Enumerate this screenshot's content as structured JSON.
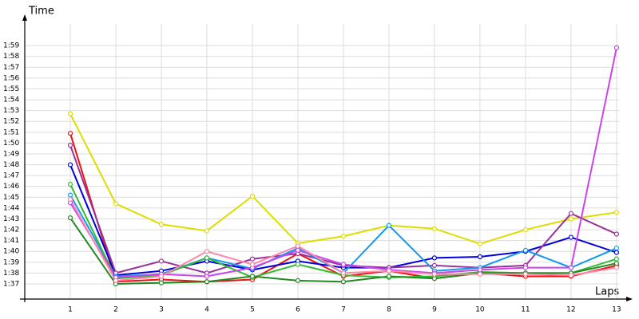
{
  "chart_data": {
    "type": "line",
    "y_label": "Time",
    "x_label": "Laps",
    "x": [
      1,
      2,
      3,
      4,
      5,
      6,
      7,
      8,
      9,
      10,
      11,
      12,
      13
    ],
    "xlim": [
      0,
      13.3
    ],
    "xticks": [
      1,
      2,
      3,
      4,
      5,
      6,
      7,
      8,
      9,
      10,
      11,
      12,
      13
    ],
    "ylim": [
      95.6,
      121
    ],
    "yticks": [
      {
        "value": 97,
        "label": "1:37"
      },
      {
        "value": 98,
        "label": "1:38"
      },
      {
        "value": 99,
        "label": "1:39"
      },
      {
        "value": 100,
        "label": "1:40"
      },
      {
        "value": 101,
        "label": "1:41"
      },
      {
        "value": 102,
        "label": "1:42"
      },
      {
        "value": 103,
        "label": "1:43"
      },
      {
        "value": 104,
        "label": "1:44"
      },
      {
        "value": 105,
        "label": "1:45"
      },
      {
        "value": 106,
        "label": "1:46"
      },
      {
        "value": 107,
        "label": "1:47"
      },
      {
        "value": 108,
        "label": "1:48"
      },
      {
        "value": 109,
        "label": "1:49"
      },
      {
        "value": 110,
        "label": "1:50"
      },
      {
        "value": 111,
        "label": "1:51"
      },
      {
        "value": 112,
        "label": "1:52"
      },
      {
        "value": 113,
        "label": "1:53"
      },
      {
        "value": 114,
        "label": "1:54"
      },
      {
        "value": 115,
        "label": "1:55"
      },
      {
        "value": 116,
        "label": "1:56"
      },
      {
        "value": 117,
        "label": "1:57"
      },
      {
        "value": 118,
        "label": "1:58"
      },
      {
        "value": 119,
        "label": "1:59"
      }
    ],
    "grid": true,
    "series": [
      {
        "color": "#dddd00",
        "values": [
          112.7,
          104.4,
          102.5,
          101.9,
          105.1,
          100.75,
          101.4,
          102.4,
          102.1,
          100.7,
          102,
          103,
          103.6
        ]
      },
      {
        "color": "#ee1111",
        "values": [
          110.9,
          97.2,
          97.4,
          97.2,
          97.4,
          99.8,
          97.7,
          98.2,
          97.5,
          98,
          97.7,
          97.7,
          98.7
        ]
      },
      {
        "color": "#0000dd",
        "values": [
          108,
          97.8,
          98.2,
          99.1,
          98.3,
          99.1,
          98.5,
          98.5,
          99.4,
          99.5,
          100,
          101.3,
          99.9
        ]
      },
      {
        "color": "#993399",
        "values": [
          109.8,
          98,
          99.1,
          98,
          99.3,
          99.8,
          98.7,
          98.5,
          98.7,
          98.5,
          98.7,
          103.5,
          101.6
        ]
      },
      {
        "color": "#1199ee",
        "values": [
          105.2,
          97.7,
          97.9,
          99.4,
          98.4,
          100.3,
          98,
          102.4,
          98.2,
          98.5,
          100.1,
          98.5,
          100.3
        ]
      },
      {
        "color": "#33bb33",
        "values": [
          106.2,
          97.5,
          97.8,
          99.4,
          97.6,
          98.8,
          97.8,
          97.6,
          97.7,
          98.1,
          98,
          98,
          99.3
        ]
      },
      {
        "color": "#228822",
        "values": [
          103.1,
          97,
          97.1,
          97.2,
          97.7,
          97.3,
          97.2,
          97.7,
          97.5,
          98,
          98,
          98,
          98.9
        ]
      },
      {
        "color": "#cc44ee",
        "values": [
          104.5,
          97.6,
          97.9,
          97.7,
          98.5,
          100.1,
          98.8,
          98.3,
          98,
          98.3,
          98.5,
          98.5,
          118.8
        ]
      },
      {
        "color": "#ff88aa",
        "values": [
          104.8,
          97.3,
          97.7,
          100,
          98.8,
          100.5,
          98,
          98.2,
          97.9,
          97.9,
          97.9,
          97.8,
          98.5
        ]
      }
    ]
  }
}
